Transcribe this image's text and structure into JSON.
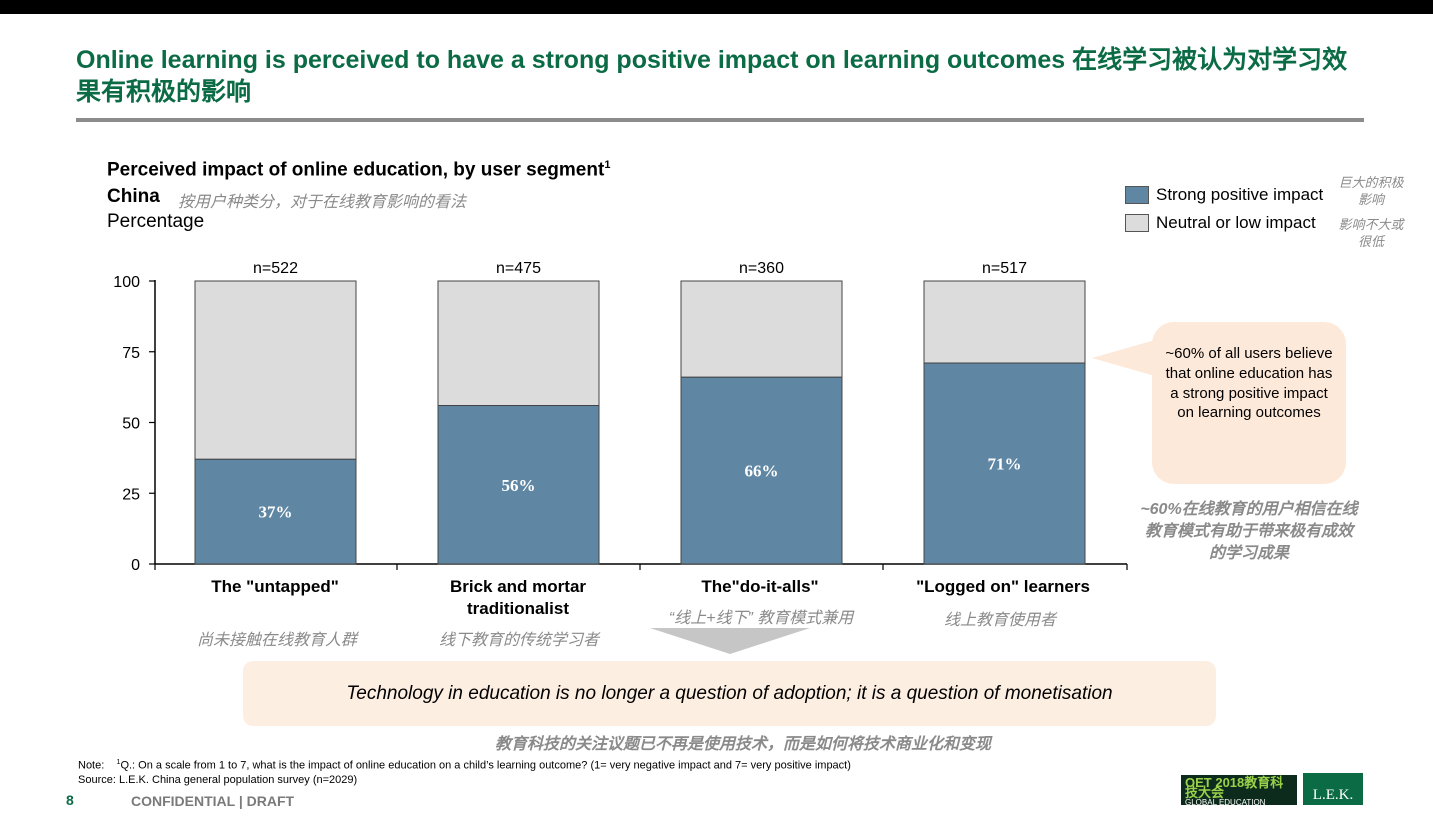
{
  "header": {
    "title": "Online learning is perceived to have a strong positive impact on learning outcomes 在线学习被认为对学习效果有积极的影响"
  },
  "chart_header": {
    "title": "Perceived impact of online education, by user segment",
    "title_sup": "1",
    "region": "China",
    "region_cn": "按用户种类分，对于在线教育影响的看法",
    "unit": "Percentage"
  },
  "legend": {
    "strong": "Strong positive impact",
    "strong_cn": "巨大的积极影响",
    "neutral": "Neutral or low impact",
    "neutral_cn": "影响不大或很低"
  },
  "chart_data": {
    "type": "bar",
    "stacked": true,
    "categories": [
      "The \"untapped\"",
      "Brick and mortar traditionalist",
      "The\"do-it-alls\"",
      "\"Logged on\" learners"
    ],
    "categories_cn": [
      "尚未接触在线教育人群",
      "线下教育的传统学习者",
      "“线上+线下” 教育模式兼用",
      "线上教育使用者"
    ],
    "sample_sizes": [
      "n=522",
      "n=475",
      "n=360",
      "n=517"
    ],
    "series": [
      {
        "name": "Strong positive impact",
        "values": [
          37,
          56,
          66,
          71
        ],
        "labels": [
          "37%",
          "56%",
          "66%",
          "71%"
        ],
        "color": "#5f87a3"
      },
      {
        "name": "Neutral or low impact",
        "values": [
          63,
          44,
          34,
          29
        ],
        "color": "#dcdcdc"
      }
    ],
    "yticks": [
      "100",
      "75",
      "50",
      "25",
      "0"
    ],
    "ylim": [
      0,
      100
    ],
    "grid": false,
    "legend_position": "top-right"
  },
  "callout": {
    "text": "~60% of all users believe that online education has a strong positive impact on learning outcomes",
    "text_cn": "~60%在线教育的用户相信在线教育模式有助于带来极有成效的学习成果"
  },
  "banner": {
    "text": "Technology in education is no longer a question of adoption; it is a question of monetisation",
    "text_cn": "教育科技的关注议题已不再是使用技术，而是如何将技术商业化和变现"
  },
  "footer": {
    "note_label": "Note:",
    "note_sup": "1",
    "note_text": "Q.: On a scale from 1 to 7, what is the impact of online education on a child’s learning outcome? (1= very negative impact and 7= very positive impact)",
    "source_label": "Source:",
    "source_text": "L.E.K. China general population survey (n=2029)",
    "page_number": "8",
    "confidentiality": "CONFIDENTIAL | DRAFT",
    "logo_oet_big": "OET 2018教育科技大会",
    "logo_oet_small": "GLOBAL EDUCATION TECHNOLOGY",
    "logo_lek": "L.E.K."
  },
  "colors": {
    "brand_green": "#0b6b45",
    "bar_strong": "#5f87a3",
    "bar_neutral": "#dcdcdc",
    "callout_bg": "#fde9d9",
    "banner_bg": "#fdeee2",
    "chinese_text": "#8a8a8a"
  }
}
